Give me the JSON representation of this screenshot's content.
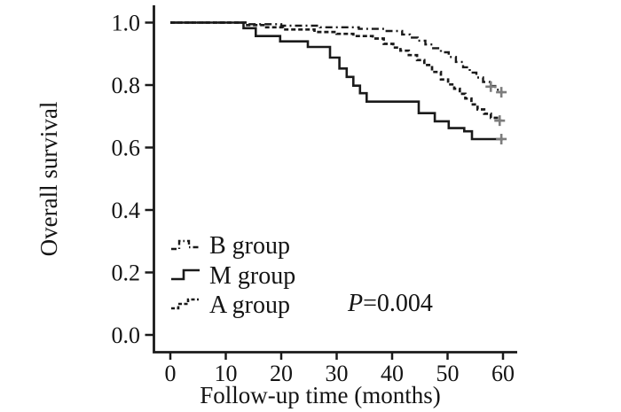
{
  "figure": {
    "background": "#ffffff",
    "axis_color": "#1a1a1a",
    "text_color": "#141414",
    "censor_color": "#7d7d7d"
  },
  "chart_data": {
    "type": "line",
    "subtype": "kaplan-meier-step-function",
    "title": "",
    "xlabel": "Follow-up time (months)",
    "ylabel": "Overall survival",
    "xlim": [
      0,
      60
    ],
    "ylim": [
      0.0,
      1.0
    ],
    "xticks": [
      0,
      10,
      20,
      30,
      40,
      50,
      60
    ],
    "ytick_labels": [
      "0.0",
      "0.2",
      "0.4",
      "0.6",
      "0.8",
      "1.0"
    ],
    "ytick_values": [
      0.0,
      0.2,
      0.4,
      0.6,
      0.8,
      1.0
    ],
    "grid": false,
    "legend_position": "inside-lower-left",
    "annotation": {
      "italic_part": "P",
      "plain_part": "=0.004",
      "full_text": "P=0.004"
    },
    "legend": [
      {
        "label": "B group",
        "style": "dash-dot"
      },
      {
        "label": "M group",
        "style": "solid"
      },
      {
        "label": "A group",
        "style": "dashed"
      }
    ],
    "series": [
      {
        "name": "B group",
        "style": "dash-dot",
        "color": "#1a1a1a",
        "steps": [
          [
            0,
            1.0
          ],
          [
            14,
            0.995
          ],
          [
            20,
            0.99
          ],
          [
            27,
            0.985
          ],
          [
            34,
            0.98
          ],
          [
            39,
            0.973
          ],
          [
            41.8,
            0.962
          ],
          [
            43.2,
            0.952
          ],
          [
            44.6,
            0.942
          ],
          [
            46,
            0.93
          ],
          [
            47.4,
            0.918
          ],
          [
            48.8,
            0.905
          ],
          [
            50.2,
            0.89
          ],
          [
            51.5,
            0.874
          ],
          [
            52.8,
            0.857
          ],
          [
            54,
            0.84
          ],
          [
            55.2,
            0.824
          ],
          [
            56.4,
            0.81
          ],
          [
            57.6,
            0.797
          ],
          [
            58.6,
            0.785
          ],
          [
            59.4,
            0.777
          ]
        ],
        "end_month": 60,
        "end_survival": 0.777,
        "censors": [
          [
            57.8,
            0.795
          ],
          [
            59.7,
            0.777
          ]
        ]
      },
      {
        "name": "A group",
        "style": "dashed",
        "color": "#1a1a1a",
        "steps": [
          [
            0,
            1.0
          ],
          [
            13.5,
            0.992
          ],
          [
            17,
            0.985
          ],
          [
            20.3,
            0.978
          ],
          [
            26,
            0.97
          ],
          [
            30,
            0.964
          ],
          [
            33,
            0.957
          ],
          [
            36.5,
            0.949
          ],
          [
            38.5,
            0.932
          ],
          [
            40.2,
            0.92
          ],
          [
            41.5,
            0.91
          ],
          [
            43,
            0.896
          ],
          [
            44.5,
            0.88
          ],
          [
            45.8,
            0.864
          ],
          [
            47.2,
            0.842
          ],
          [
            48.8,
            0.818
          ],
          [
            50.1,
            0.802
          ],
          [
            51.2,
            0.788
          ],
          [
            52.2,
            0.772
          ],
          [
            53.2,
            0.757
          ],
          [
            54.3,
            0.738
          ],
          [
            55.4,
            0.722
          ],
          [
            56.6,
            0.708
          ],
          [
            57.8,
            0.695
          ],
          [
            59.3,
            0.686
          ]
        ],
        "end_month": 60,
        "end_survival": 0.686,
        "censors": [
          [
            59.4,
            0.686
          ]
        ]
      },
      {
        "name": "M group",
        "style": "solid",
        "color": "#1a1a1a",
        "steps": [
          [
            0,
            1.0
          ],
          [
            13.2,
            0.982
          ],
          [
            15.4,
            0.957
          ],
          [
            19.8,
            0.94
          ],
          [
            24.8,
            0.922
          ],
          [
            28.8,
            0.888
          ],
          [
            30.5,
            0.853
          ],
          [
            31.8,
            0.826
          ],
          [
            33,
            0.798
          ],
          [
            34.2,
            0.774
          ],
          [
            35.4,
            0.747
          ],
          [
            44.8,
            0.71
          ],
          [
            47.7,
            0.684
          ],
          [
            50.2,
            0.662
          ],
          [
            53,
            0.652
          ],
          [
            54.4,
            0.627
          ]
        ],
        "end_month": 60,
        "end_survival": 0.627,
        "censors": [
          [
            59.7,
            0.627
          ]
        ]
      }
    ]
  }
}
